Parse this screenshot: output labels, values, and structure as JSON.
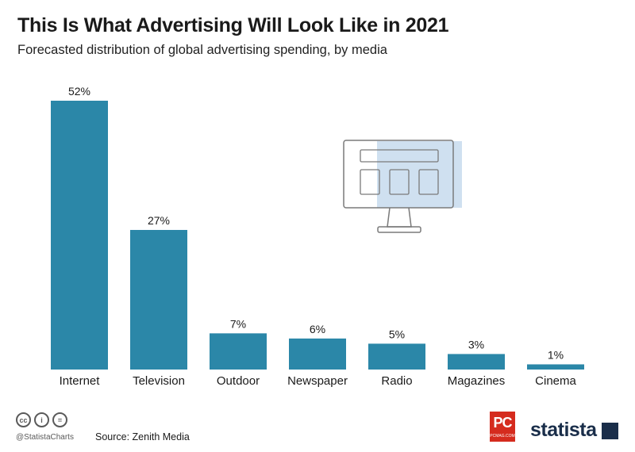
{
  "header": {
    "title": "This Is What Advertising Will Look Like in 2021",
    "subtitle": "Forecasted distribution of global advertising spending, by media"
  },
  "chart_data": {
    "type": "bar",
    "categories": [
      "Internet",
      "Television",
      "Outdoor",
      "Newspaper",
      "Radio",
      "Magazines",
      "Cinema"
    ],
    "values": [
      52,
      27,
      7,
      6,
      5,
      3,
      1
    ],
    "value_labels": [
      "52%",
      "27%",
      "7%",
      "6%",
      "5%",
      "3%",
      "1%"
    ],
    "unit": "%",
    "ylim": [
      0,
      52
    ],
    "bar_color": "#2b87a8",
    "grid": false
  },
  "footer": {
    "license_icons": [
      "cc-icon",
      "by-icon",
      "nd-icon"
    ],
    "cc_glyphs": [
      "cc",
      "i",
      "="
    ],
    "handle": "@StatistaCharts",
    "source": "Source: Zenith Media",
    "partner_logo": "PC",
    "partner_logo_sub": "PCMAG.COM",
    "brand": "statista"
  }
}
